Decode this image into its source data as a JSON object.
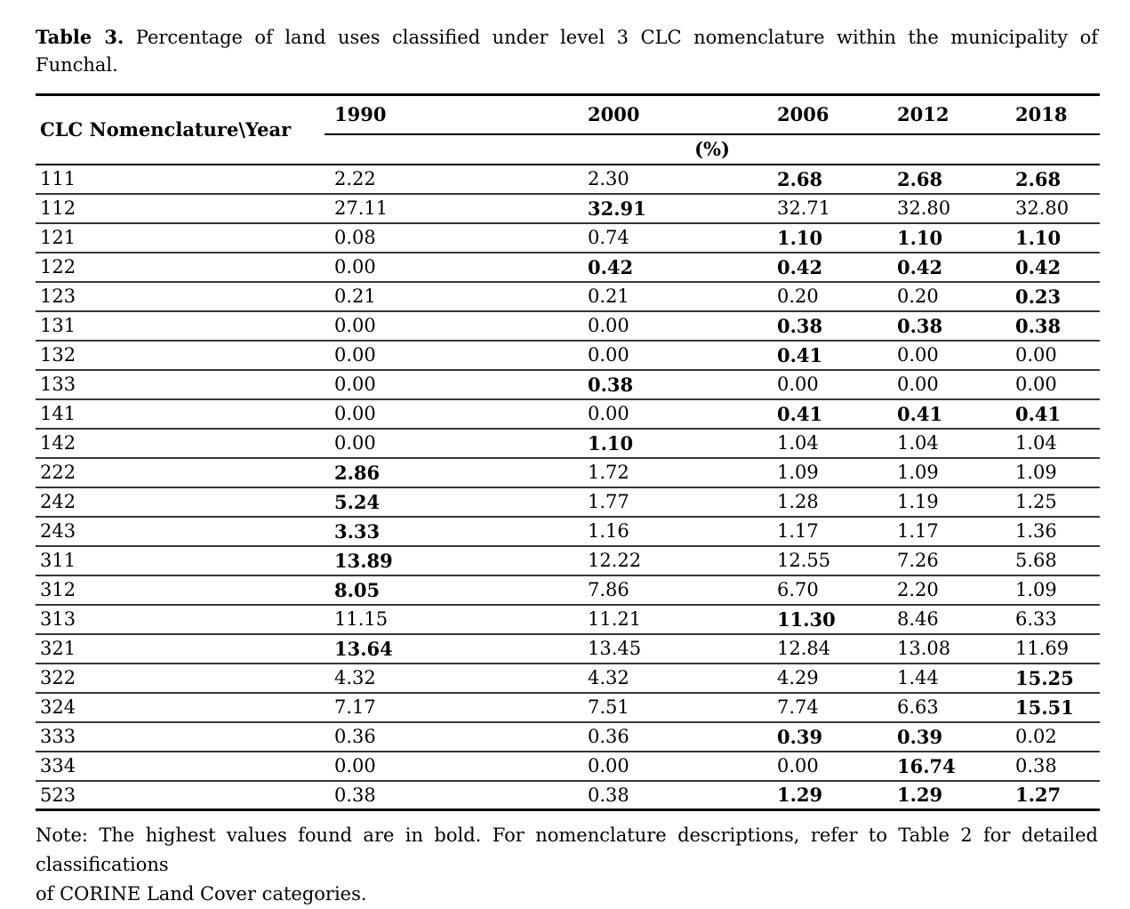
{
  "title": {
    "label": "Table 3.",
    "line1_rest": "Percentage of land uses classified under level 3 CLC nomenclature within the municipality of",
    "line2": "Funchal."
  },
  "table": {
    "corner_header": "CLC Nomenclature\\Year",
    "years": [
      "1990",
      "2000",
      "2006",
      "2012",
      "2018"
    ],
    "unit_label": "(%)",
    "rows": [
      {
        "code": "111",
        "values": [
          "2.22",
          "2.30",
          "2.68",
          "2.68",
          "2.68"
        ],
        "bold": [
          false,
          false,
          true,
          true,
          true
        ]
      },
      {
        "code": "112",
        "values": [
          "27.11",
          "32.91",
          "32.71",
          "32.80",
          "32.80"
        ],
        "bold": [
          false,
          true,
          false,
          false,
          false
        ]
      },
      {
        "code": "121",
        "values": [
          "0.08",
          "0.74",
          "1.10",
          "1.10",
          "1.10"
        ],
        "bold": [
          false,
          false,
          true,
          true,
          true
        ]
      },
      {
        "code": "122",
        "values": [
          "0.00",
          "0.42",
          "0.42",
          "0.42",
          "0.42"
        ],
        "bold": [
          false,
          true,
          true,
          true,
          true
        ]
      },
      {
        "code": "123",
        "values": [
          "0.21",
          "0.21",
          "0.20",
          "0.20",
          "0.23"
        ],
        "bold": [
          false,
          false,
          false,
          false,
          true
        ]
      },
      {
        "code": "131",
        "values": [
          "0.00",
          "0.00",
          "0.38",
          "0.38",
          "0.38"
        ],
        "bold": [
          false,
          false,
          true,
          true,
          true
        ]
      },
      {
        "code": "132",
        "values": [
          "0.00",
          "0.00",
          "0.41",
          "0.00",
          "0.00"
        ],
        "bold": [
          false,
          false,
          true,
          false,
          false
        ]
      },
      {
        "code": "133",
        "values": [
          "0.00",
          "0.38",
          "0.00",
          "0.00",
          "0.00"
        ],
        "bold": [
          false,
          true,
          false,
          false,
          false
        ]
      },
      {
        "code": "141",
        "values": [
          "0.00",
          "0.00",
          "0.41",
          "0.41",
          "0.41"
        ],
        "bold": [
          false,
          false,
          true,
          true,
          true
        ]
      },
      {
        "code": "142",
        "values": [
          "0.00",
          "1.10",
          "1.04",
          "1.04",
          "1.04"
        ],
        "bold": [
          false,
          true,
          false,
          false,
          false
        ]
      },
      {
        "code": "222",
        "values": [
          "2.86",
          "1.72",
          "1.09",
          "1.09",
          "1.09"
        ],
        "bold": [
          true,
          false,
          false,
          false,
          false
        ]
      },
      {
        "code": "242",
        "values": [
          "5.24",
          "1.77",
          "1.28",
          "1.19",
          "1.25"
        ],
        "bold": [
          true,
          false,
          false,
          false,
          false
        ]
      },
      {
        "code": "243",
        "values": [
          "3.33",
          "1.16",
          "1.17",
          "1.17",
          "1.36"
        ],
        "bold": [
          true,
          false,
          false,
          false,
          false
        ]
      },
      {
        "code": "311",
        "values": [
          "13.89",
          "12.22",
          "12.55",
          "7.26",
          "5.68"
        ],
        "bold": [
          true,
          false,
          false,
          false,
          false
        ]
      },
      {
        "code": "312",
        "values": [
          "8.05",
          "7.86",
          "6.70",
          "2.20",
          "1.09"
        ],
        "bold": [
          true,
          false,
          false,
          false,
          false
        ]
      },
      {
        "code": "313",
        "values": [
          "11.15",
          "11.21",
          "11.30",
          "8.46",
          "6.33"
        ],
        "bold": [
          false,
          false,
          true,
          false,
          false
        ]
      },
      {
        "code": "321",
        "values": [
          "13.64",
          "13.45",
          "12.84",
          "13.08",
          "11.69"
        ],
        "bold": [
          true,
          false,
          false,
          false,
          false
        ]
      },
      {
        "code": "322",
        "values": [
          "4.32",
          "4.32",
          "4.29",
          "1.44",
          "15.25"
        ],
        "bold": [
          false,
          false,
          false,
          false,
          true
        ]
      },
      {
        "code": "324",
        "values": [
          "7.17",
          "7.51",
          "7.74",
          "6.63",
          "15.51"
        ],
        "bold": [
          false,
          false,
          false,
          false,
          true
        ]
      },
      {
        "code": "333",
        "values": [
          "0.36",
          "0.36",
          "0.39",
          "0.39",
          "0.02"
        ],
        "bold": [
          false,
          false,
          true,
          true,
          false
        ]
      },
      {
        "code": "334",
        "values": [
          "0.00",
          "0.00",
          "0.00",
          "16.74",
          "0.38"
        ],
        "bold": [
          false,
          false,
          false,
          true,
          false
        ]
      },
      {
        "code": "523",
        "values": [
          "0.38",
          "0.38",
          "1.29",
          "1.29",
          "1.27"
        ],
        "bold": [
          false,
          false,
          true,
          true,
          true
        ]
      }
    ]
  },
  "note": {
    "line1": "Note: The highest values found are in bold. For nomenclature descriptions, refer to Table 2 for detailed classifications",
    "line2": "of CORINE Land Cover categories."
  }
}
